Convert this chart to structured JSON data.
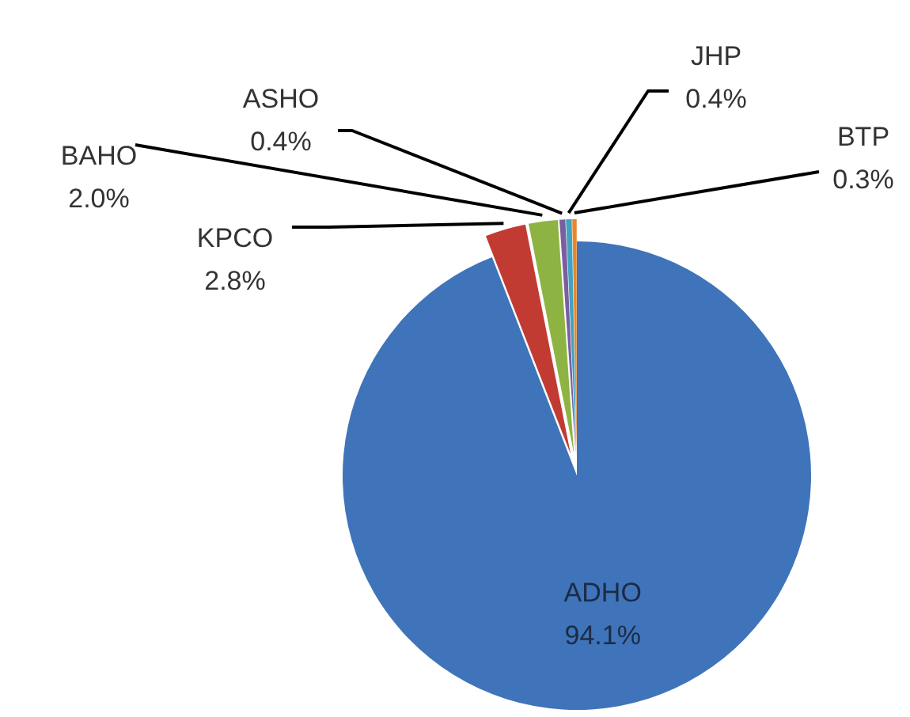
{
  "chart_data": {
    "type": "pie",
    "categories": [
      "ADHO",
      "KPCO",
      "BAHO",
      "ASHO",
      "JHP",
      "BTP"
    ],
    "values": [
      94.1,
      2.8,
      2.0,
      0.4,
      0.4,
      0.3
    ],
    "value_labels": [
      "94.1%",
      "2.8%",
      "2.0%",
      "0.4%",
      "0.4%",
      "0.3%"
    ],
    "colors": [
      "#3f74ba",
      "#c23b33",
      "#8db443",
      "#7a5fa0",
      "#3fa3c2",
      "#e8872e"
    ]
  }
}
